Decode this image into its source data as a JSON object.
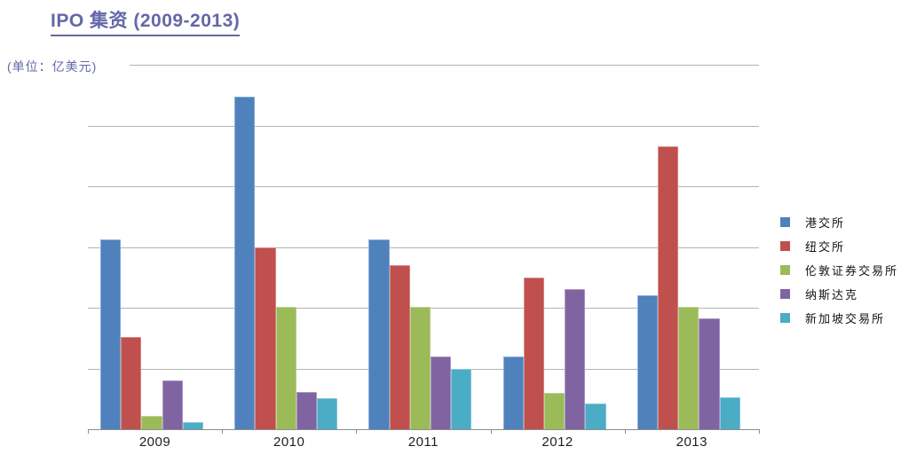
{
  "header": {
    "title": "IPO 集资 (2009-2013)",
    "title_color": "#6567A9"
  },
  "axis": {
    "unit_label": "(单位：亿美元)"
  },
  "palette": {
    "gridline": "#B4B4B4",
    "axis_line": "#8C8C8C",
    "tick_label": "#111111"
  },
  "chart_data": {
    "type": "bar",
    "title": "IPO 集资 (2009-2013)",
    "ylabel": "(单位：亿美元)",
    "categories": [
      "2009",
      "2010",
      "2011",
      "2012",
      "2013"
    ],
    "series": [
      {
        "name": "港交所",
        "color": "#4F81BD",
        "values": [
          313,
          548,
          313,
          120,
          220
        ]
      },
      {
        "name": "纽交所",
        "color": "#C0504D",
        "values": [
          152,
          300,
          270,
          250,
          465
        ]
      },
      {
        "name": "伦敦证券交易所",
        "color": "#9BBB59",
        "values": [
          22,
          202,
          202,
          60,
          202
        ]
      },
      {
        "name": "纳斯达克",
        "color": "#8064A2",
        "values": [
          81,
          61,
          120,
          230,
          183
        ]
      },
      {
        "name": "新加坡交易所",
        "color": "#4BACC6",
        "values": [
          12,
          51,
          100,
          42,
          52
        ]
      }
    ],
    "ylim": [
      0,
      600
    ],
    "ytick_step": 100,
    "yticks": [
      "600",
      "500",
      "400",
      "300",
      "200",
      "100",
      "0"
    ],
    "grid": true,
    "legend_position": "right"
  }
}
